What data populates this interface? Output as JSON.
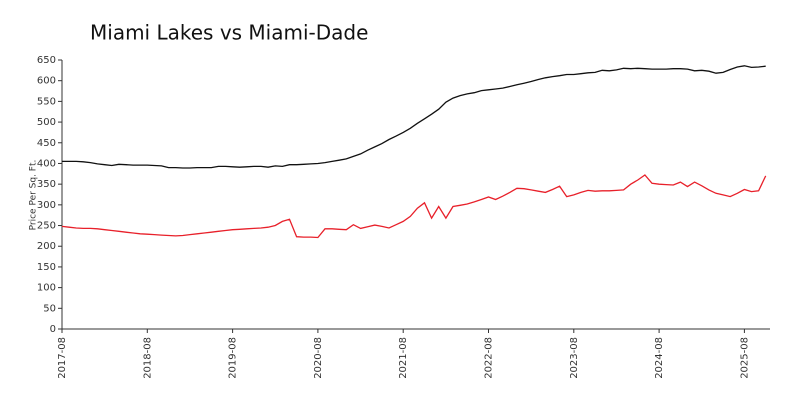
{
  "chart_data": {
    "type": "line",
    "title": "Miami Lakes vs Miami-Dade",
    "y_label": "Price Per Sq. Ft.",
    "categories": [
      "2017-08",
      "2017-09",
      "2017-10",
      "2017-11",
      "2017-12",
      "2018-01",
      "2018-02",
      "2018-03",
      "2018-04",
      "2018-05",
      "2018-06",
      "2018-07",
      "2018-08",
      "2018-09",
      "2018-10",
      "2018-11",
      "2018-12",
      "2019-01",
      "2019-02",
      "2019-03",
      "2019-04",
      "2019-05",
      "2019-06",
      "2019-07",
      "2019-08",
      "2019-09",
      "2019-10",
      "2019-11",
      "2019-12",
      "2020-01",
      "2020-02",
      "2020-03",
      "2020-04",
      "2020-05",
      "2020-06",
      "2020-07",
      "2020-08",
      "2020-09",
      "2020-10",
      "2020-11",
      "2020-12",
      "2021-01",
      "2021-02",
      "2021-03",
      "2021-04",
      "2021-05",
      "2021-06",
      "2021-07",
      "2021-08",
      "2021-09",
      "2021-10",
      "2021-11",
      "2021-12",
      "2022-01",
      "2022-02",
      "2022-03",
      "2022-04",
      "2022-05",
      "2022-06",
      "2022-07",
      "2022-08",
      "2022-09",
      "2022-10",
      "2022-11",
      "2022-12",
      "2023-01",
      "2023-02",
      "2023-03",
      "2023-04",
      "2023-05",
      "2023-06",
      "2023-07",
      "2023-08",
      "2023-09",
      "2023-10",
      "2023-11",
      "2023-12",
      "2024-01",
      "2024-02",
      "2024-03",
      "2024-04",
      "2024-05",
      "2024-06",
      "2024-07",
      "2024-08",
      "2024-09",
      "2024-10",
      "2024-11",
      "2024-12",
      "2025-01",
      "2025-02",
      "2025-03",
      "2025-04",
      "2025-05",
      "2025-06",
      "2025-07",
      "2025-08",
      "2025-09",
      "2025-10",
      "2025-11"
    ],
    "xticks": [
      "2017-08",
      "2018-08",
      "2019-08",
      "2020-08",
      "2021-08",
      "2022-08",
      "2023-08",
      "2024-08",
      "2025-08"
    ],
    "series": [
      {
        "color": "#111111",
        "values": [
          405,
          405,
          405,
          404,
          402,
          399,
          397,
          395,
          398,
          397,
          396,
          396,
          396,
          395,
          394,
          390,
          390,
          389,
          389,
          390,
          390,
          390,
          393,
          393,
          392,
          391,
          392,
          393,
          393,
          391,
          394,
          393,
          397,
          397,
          398,
          399,
          400,
          402,
          405,
          408,
          411,
          417,
          423,
          432,
          440,
          448,
          458,
          466,
          475,
          485,
          497,
          508,
          519,
          531,
          548,
          558,
          564,
          568,
          571,
          576,
          578,
          580,
          582,
          586,
          590,
          594,
          598,
          603,
          607,
          610,
          612,
          615,
          615,
          617,
          619,
          620,
          625,
          624,
          626,
          630,
          629,
          630,
          629,
          628,
          628,
          628,
          629,
          629,
          628,
          624,
          625,
          623,
          618,
          620,
          627,
          633,
          636,
          632,
          633,
          635
        ]
      },
      {
        "color": "#e8202a",
        "values": [
          248,
          246,
          244,
          243,
          243,
          242,
          240,
          238,
          236,
          234,
          232,
          230,
          229,
          228,
          227,
          226,
          225,
          226,
          228,
          230,
          232,
          234,
          236,
          238,
          240,
          241,
          242,
          243,
          244,
          246,
          250,
          260,
          265,
          223,
          222,
          222,
          221,
          242,
          242,
          241,
          240,
          252,
          243,
          247,
          251,
          248,
          244,
          252,
          260,
          272,
          292,
          305,
          268,
          296,
          268,
          296,
          299,
          302,
          307,
          313,
          319,
          313,
          321,
          330,
          340,
          339,
          336,
          333,
          330,
          337,
          345,
          320,
          324,
          330,
          335,
          333,
          334,
          334,
          335,
          336,
          350,
          360,
          372,
          352,
          350,
          349,
          348,
          355,
          344,
          355,
          346,
          336,
          328,
          324,
          320,
          328,
          337,
          332,
          334,
          370
        ]
      }
    ],
    "ylim": [
      0,
      650
    ],
    "yticks": [
      0,
      50,
      100,
      150,
      200,
      250,
      300,
      350,
      400,
      450,
      500,
      550,
      600,
      650
    ],
    "grid": false
  }
}
